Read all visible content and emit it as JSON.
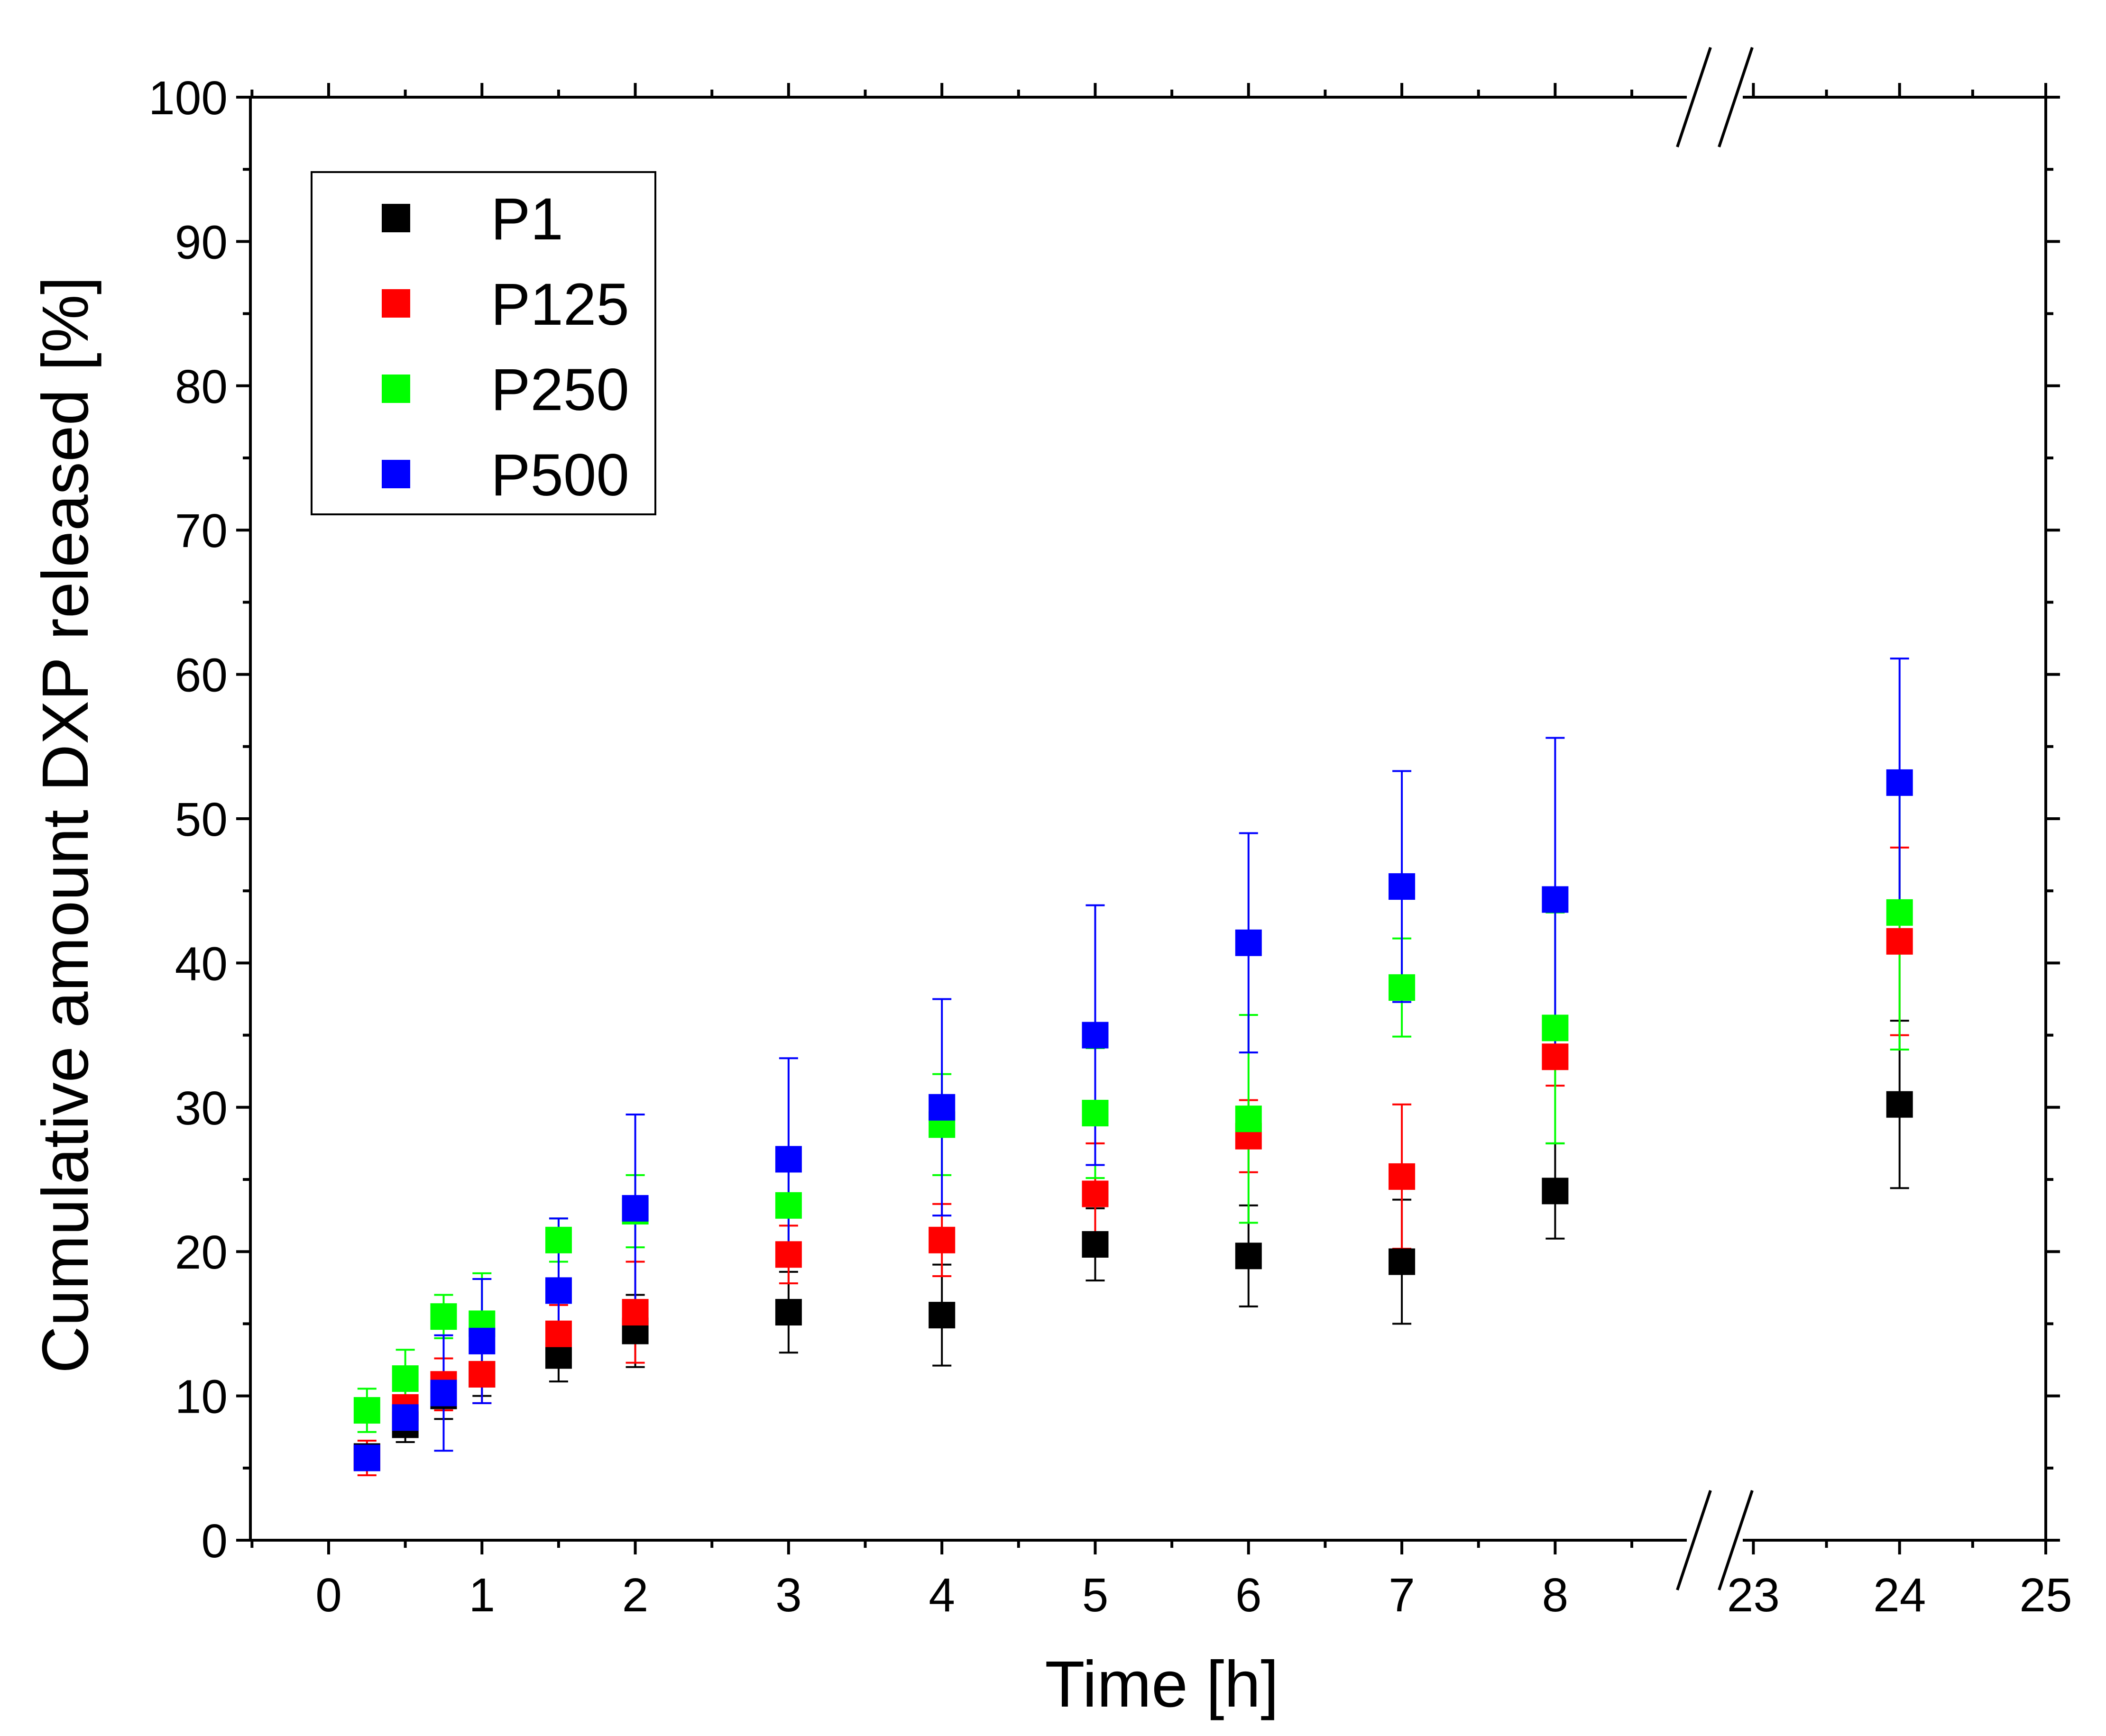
{
  "chart_data": {
    "type": "scatter",
    "title": "",
    "xlabel": "Time [h]",
    "ylabel": "Cumulative amount DXP released [%]",
    "ylim": [
      0,
      100
    ],
    "x_segments": [
      {
        "range": [
          -0.5,
          8.85
        ]
      },
      {
        "range": [
          22.95,
          25
        ]
      }
    ],
    "axis_break": "between 8.85 and 22.95",
    "x_ticks": [
      {
        "value": 0,
        "label": "0"
      },
      {
        "value": 1,
        "label": "1"
      },
      {
        "value": 2,
        "label": "2"
      },
      {
        "value": 3,
        "label": "3"
      },
      {
        "value": 4,
        "label": "4"
      },
      {
        "value": 5,
        "label": "5"
      },
      {
        "value": 6,
        "label": "6"
      },
      {
        "value": 7,
        "label": "7"
      },
      {
        "value": 8,
        "label": "8"
      },
      {
        "value": 23,
        "label": "23"
      },
      {
        "value": 24,
        "label": "24"
      },
      {
        "value": 25,
        "label": "25"
      }
    ],
    "y_ticks": [
      {
        "value": 0,
        "label": "0"
      },
      {
        "value": 10,
        "label": "10"
      },
      {
        "value": 20,
        "label": "20"
      },
      {
        "value": 30,
        "label": "30"
      },
      {
        "value": 40,
        "label": "40"
      },
      {
        "value": 50,
        "label": "50"
      },
      {
        "value": 60,
        "label": "60"
      },
      {
        "value": 70,
        "label": "70"
      },
      {
        "value": 80,
        "label": "80"
      },
      {
        "value": 90,
        "label": "90"
      },
      {
        "value": 100,
        "label": "100"
      }
    ],
    "legend": {
      "position": "top-left"
    },
    "series": [
      {
        "name": "P1",
        "color": "#000000",
        "points": [
          {
            "x": 0.25,
            "y": 5.8,
            "err": 0.8
          },
          {
            "x": 0.5,
            "y": 8.0,
            "err": 1.2
          },
          {
            "x": 0.75,
            "y": 10.0,
            "err": 1.6
          },
          {
            "x": 1,
            "y": 11.5,
            "err": 1.5
          },
          {
            "x": 1.5,
            "y": 12.8,
            "err": 1.8
          },
          {
            "x": 2,
            "y": 14.5,
            "err": 2.5
          },
          {
            "x": 3,
            "y": 15.8,
            "err": 2.8
          },
          {
            "x": 4,
            "y": 15.6,
            "err": 3.5
          },
          {
            "x": 5,
            "y": 20.5,
            "err": 2.5
          },
          {
            "x": 6,
            "y": 19.7,
            "err": 3.5
          },
          {
            "x": 7,
            "y": 19.3,
            "err": 4.3
          },
          {
            "x": 8,
            "y": 24.2,
            "err": 3.3
          },
          {
            "x": 24,
            "y": 30.2,
            "err": 5.8
          }
        ]
      },
      {
        "name": "P125",
        "color": "#ff0000",
        "points": [
          {
            "x": 0.25,
            "y": 5.7,
            "err": 1.2
          },
          {
            "x": 0.5,
            "y": 9.2,
            "err": 1.5
          },
          {
            "x": 0.75,
            "y": 10.8,
            "err": 1.8
          },
          {
            "x": 1,
            "y": 11.5,
            "err": 2.0
          },
          {
            "x": 1.5,
            "y": 14.3,
            "err": 2.0
          },
          {
            "x": 2,
            "y": 15.8,
            "err": 3.5
          },
          {
            "x": 3,
            "y": 19.8,
            "err": 2.0
          },
          {
            "x": 4,
            "y": 20.8,
            "err": 2.5
          },
          {
            "x": 5,
            "y": 24.0,
            "err": 3.5
          },
          {
            "x": 6,
            "y": 28.0,
            "err": 2.5
          },
          {
            "x": 7,
            "y": 25.2,
            "err": 5.0
          },
          {
            "x": 8,
            "y": 33.5,
            "err": 2.0
          },
          {
            "x": 24,
            "y": 41.5,
            "err": 6.5
          }
        ]
      },
      {
        "name": "P250",
        "color": "#00ff00",
        "points": [
          {
            "x": 0.25,
            "y": 9.0,
            "err": 1.5
          },
          {
            "x": 0.5,
            "y": 11.2,
            "err": 2.0
          },
          {
            "x": 0.75,
            "y": 15.5,
            "err": 1.5
          },
          {
            "x": 1,
            "y": 15.0,
            "err": 3.5
          },
          {
            "x": 1.5,
            "y": 20.8,
            "err": 1.5
          },
          {
            "x": 2,
            "y": 22.8,
            "err": 2.5
          },
          {
            "x": 3,
            "y": 23.2,
            "err": 3.0
          },
          {
            "x": 4,
            "y": 28.8,
            "err": 3.5
          },
          {
            "x": 5,
            "y": 29.6,
            "err": 4.5
          },
          {
            "x": 6,
            "y": 29.2,
            "err": 7.2
          },
          {
            "x": 7,
            "y": 38.3,
            "err": 3.4
          },
          {
            "x": 8,
            "y": 35.5,
            "err": 8.0
          },
          {
            "x": 24,
            "y": 43.5,
            "err": 9.5
          }
        ]
      },
      {
        "name": "P500",
        "color": "#0000ff",
        "points": [
          {
            "x": 0.25,
            "y": 5.7,
            "err": 0.8
          },
          {
            "x": 0.5,
            "y": 8.5,
            "err": 1.3
          },
          {
            "x": 0.75,
            "y": 10.2,
            "err": 4.0
          },
          {
            "x": 1,
            "y": 13.8,
            "err": 4.3
          },
          {
            "x": 1.5,
            "y": 17.3,
            "err": 5.0
          },
          {
            "x": 2,
            "y": 23.0,
            "err": 6.5
          },
          {
            "x": 3,
            "y": 26.4,
            "err": 7.0
          },
          {
            "x": 4,
            "y": 30.0,
            "err": 7.5
          },
          {
            "x": 5,
            "y": 35.0,
            "err": 9.0
          },
          {
            "x": 6,
            "y": 41.4,
            "err": 7.6
          },
          {
            "x": 7,
            "y": 45.3,
            "err": 8.0
          },
          {
            "x": 8,
            "y": 44.4,
            "err": 11.2
          },
          {
            "x": 24,
            "y": 52.5,
            "err": 8.6
          }
        ]
      }
    ]
  }
}
